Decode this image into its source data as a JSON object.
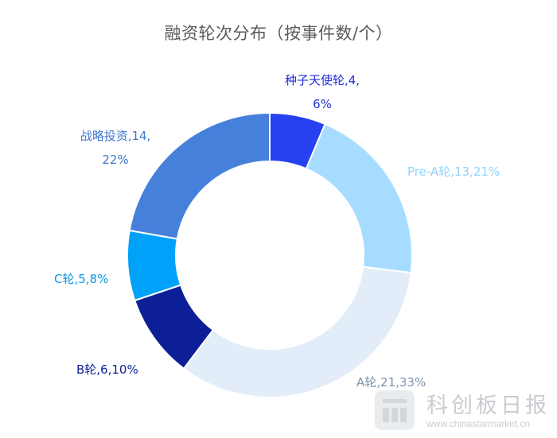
{
  "chart_data": {
    "type": "pie",
    "donut": true,
    "title": "融资轮次分布（按事件数/个）",
    "slices": [
      {
        "name": "种子天使轮",
        "value": 4,
        "percent": "6%",
        "label_line1": "种子天使轮,4,",
        "label_line2": "6%",
        "color": "#2541f0",
        "label_color": "#1f2fd6"
      },
      {
        "name": "Pre-A轮",
        "value": 13,
        "percent": "21%",
        "label_line1": "Pre-A轮,13,21%",
        "label_line2": "",
        "color": "#a6dcff",
        "label_color": "#8fd2ff"
      },
      {
        "name": "A轮",
        "value": 21,
        "percent": "33%",
        "label_line1": "A轮,21,33%",
        "label_line2": "",
        "color": "#e3edf9",
        "label_color": "#7f93ad"
      },
      {
        "name": "B轮",
        "value": 6,
        "percent": "10%",
        "label_line1": "B轮,6,10%",
        "label_line2": "",
        "color": "#0c1f96",
        "label_color": "#0c1f96"
      },
      {
        "name": "C轮",
        "value": 5,
        "percent": "8%",
        "label_line1": "C轮,5,8%",
        "label_line2": "",
        "color": "#00a1f8",
        "label_color": "#0a96e8"
      },
      {
        "name": "战略投资",
        "value": 14,
        "percent": "22%",
        "label_line1": "战略投资,14,",
        "label_line2": "22%",
        "color": "#4580db",
        "label_color": "#3f78cf"
      }
    ]
  },
  "watermark": {
    "name": "科创板日报",
    "url": "www.chinastarmarket.cn"
  }
}
